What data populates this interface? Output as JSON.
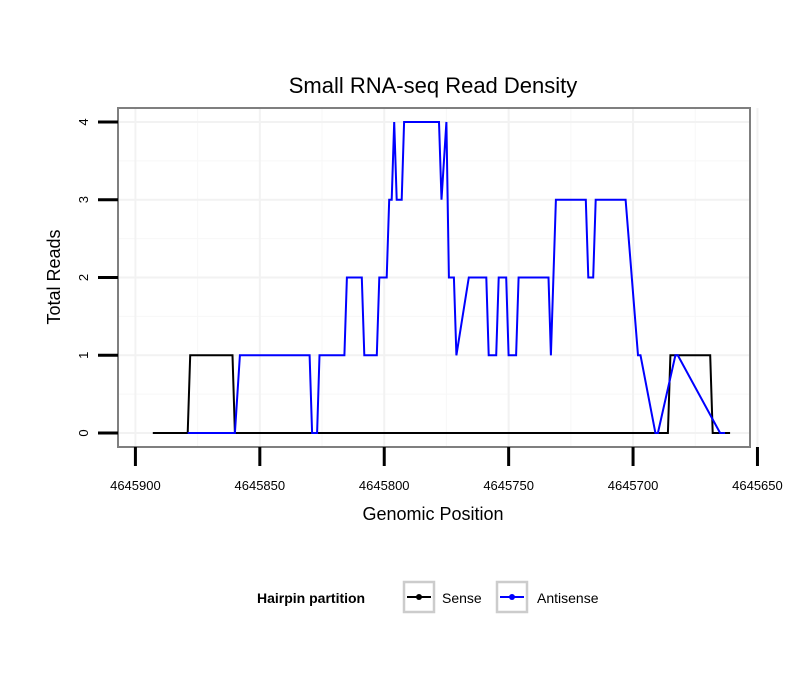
{
  "chart_data": {
    "type": "line",
    "title": "Small RNA-seq Read Density",
    "xlabel": "Genomic Position",
    "ylabel": "Total Reads",
    "x_reversed": true,
    "xlim": [
      4645907,
      4645653
    ],
    "ylim": [
      -0.18,
      4.18
    ],
    "x_ticks": [
      4645900,
      4645850,
      4645800,
      4645750,
      4645700,
      4645650
    ],
    "x_tick_labels": [
      "4645900",
      "4645850",
      "4645800",
      "4645750",
      "4645700",
      "4645650"
    ],
    "y_ticks": [
      0,
      1,
      2,
      3,
      4
    ],
    "y_tick_labels": [
      "0",
      "1",
      "2",
      "3",
      "4"
    ],
    "grid": true,
    "legend": {
      "title": "Hairpin partition",
      "position": "bottom",
      "entries": [
        "Sense",
        "Antisense"
      ]
    },
    "series": [
      {
        "name": "Sense",
        "color": "#000000",
        "x": [
          4645893,
          4645879,
          4645878,
          4645861,
          4645860,
          4645686,
          4645685,
          4645669,
          4645668,
          4645661
        ],
        "y": [
          0,
          0,
          1,
          1,
          0,
          0,
          1,
          1,
          0,
          0
        ]
      },
      {
        "name": "Antisense",
        "color": "#0000ff",
        "x": [
          4645879,
          4645860,
          4645858,
          4645830,
          4645829,
          4645827,
          4645826,
          4645816,
          4645815,
          4645809,
          4645808,
          4645803,
          4645802,
          4645799,
          4645798,
          4645797,
          4645796,
          4645795,
          4645794,
          4645793,
          4645792,
          4645790,
          4645789,
          4645778,
          4645777,
          4645775,
          4645774,
          4645772,
          4645771,
          4645766,
          4645765,
          4645759,
          4645758,
          4645755,
          4645754,
          4645751,
          4645750,
          4645747,
          4645746,
          4645734,
          4645733,
          4645731,
          4645727,
          4645719,
          4645718,
          4645716,
          4645715,
          4645703,
          4645698,
          4645697,
          4645691,
          4645690,
          4645683,
          4645682,
          4645665,
          4645664,
          4645663
        ],
        "y": [
          0,
          0,
          1,
          1,
          0,
          0,
          1,
          1,
          2,
          2,
          1,
          1,
          2,
          2,
          3,
          3,
          4,
          3,
          3,
          3,
          4,
          4,
          4,
          4,
          3,
          4,
          2,
          2,
          1,
          2,
          2,
          2,
          1,
          1,
          2,
          2,
          1,
          1,
          2,
          2,
          1,
          3,
          3,
          3,
          2,
          2,
          3,
          3,
          1,
          1,
          0,
          0,
          1,
          1,
          0,
          0,
          0
        ]
      }
    ]
  }
}
